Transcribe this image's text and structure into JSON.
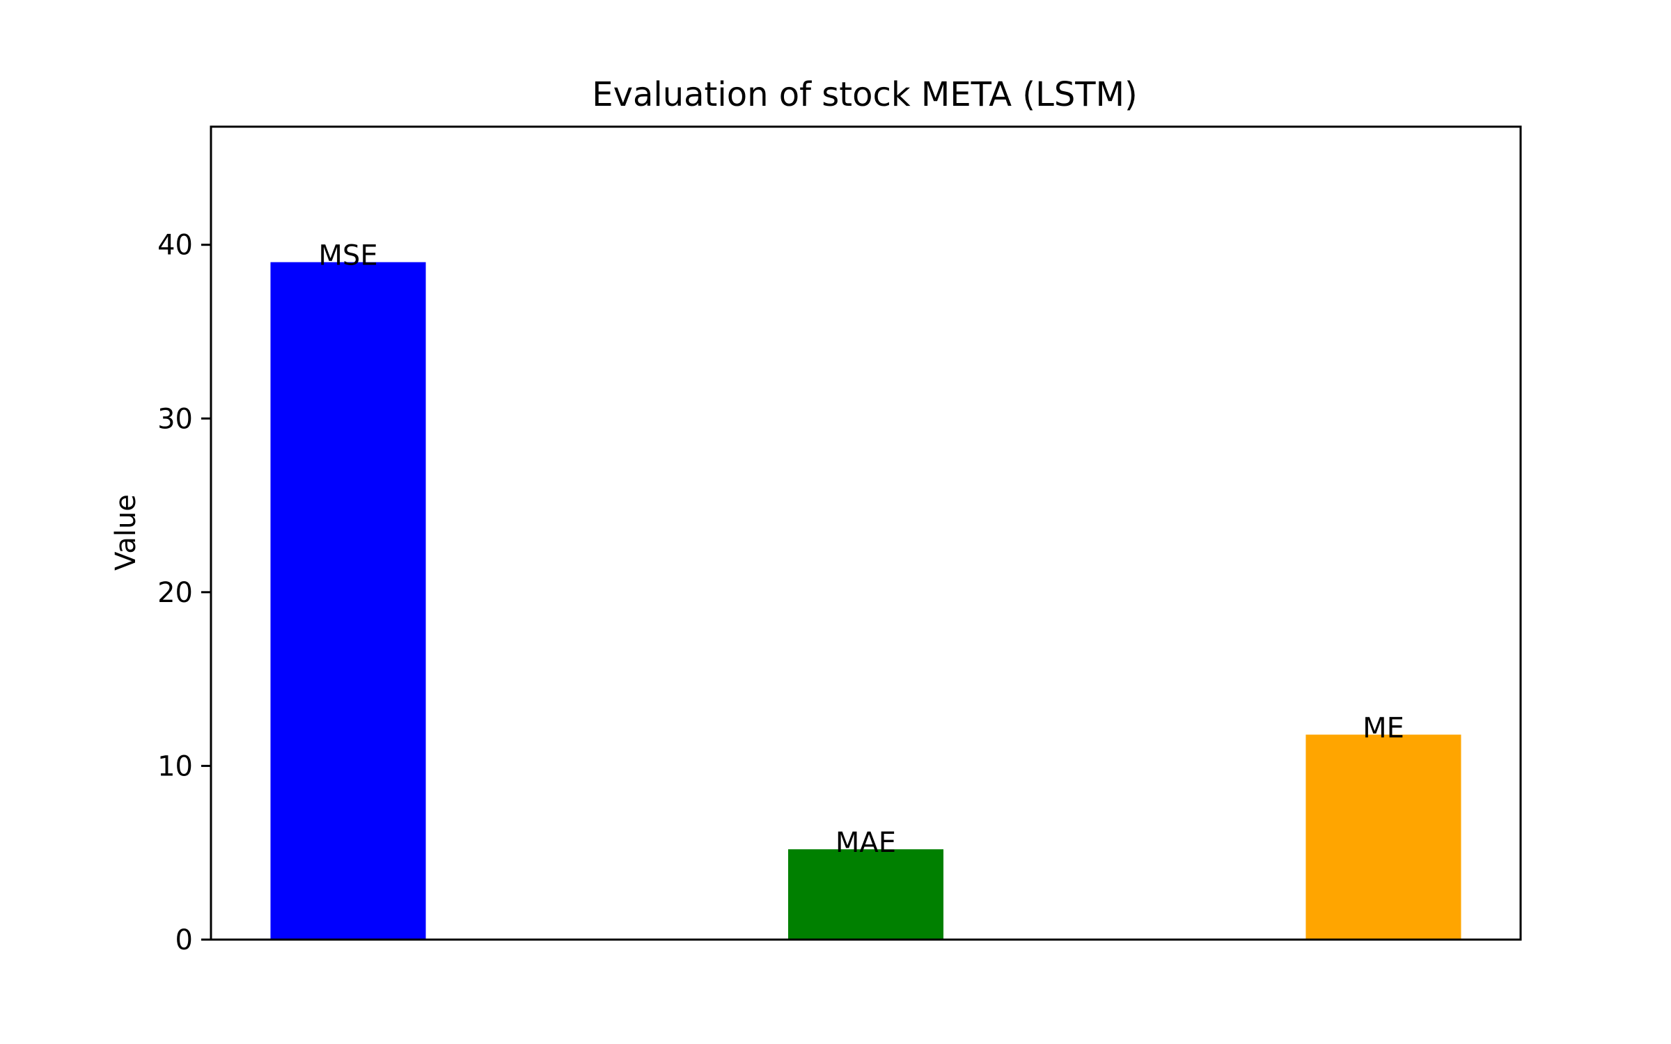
{
  "chart_data": {
    "type": "bar",
    "title": "Evaluation of stock META (LSTM)",
    "xlabel": "",
    "ylabel": "Value",
    "categories": [
      "MSE",
      "MAE",
      "ME"
    ],
    "values": [
      39.0,
      5.2,
      11.8
    ],
    "bar_colors": [
      "#0000ff",
      "#008000",
      "#ffa500"
    ],
    "ylim": [
      0,
      46.8
    ],
    "yticks": [
      0,
      10,
      20,
      30,
      40
    ],
    "grid": false,
    "legend": "none"
  }
}
